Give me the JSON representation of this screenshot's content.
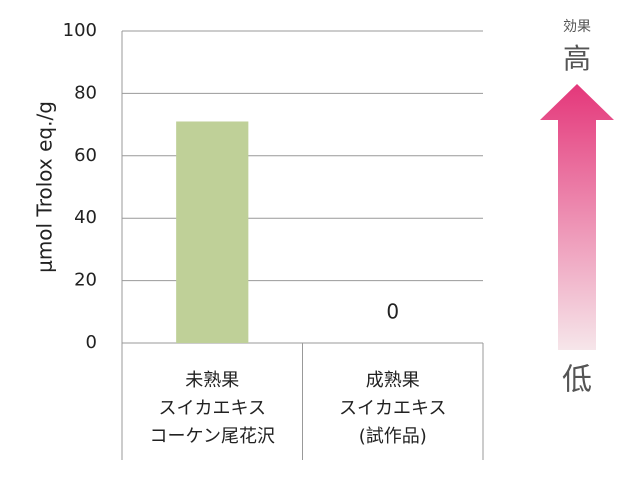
{
  "chart_data": {
    "type": "bar",
    "y_label": "μmol Trolox eq./g",
    "categories": [
      [
        "未熟果",
        "スイカエキス",
        "コーケン尾花沢"
      ],
      [
        "成熟果",
        "スイカエキス",
        "(試作品)"
      ]
    ],
    "values": [
      71,
      0
    ],
    "value_labels": [
      null,
      "0"
    ],
    "color": "#bfd098",
    "ylim": [
      0,
      100
    ],
    "yticks": [
      0,
      20,
      40,
      60,
      80,
      100
    ],
    "grid": true,
    "annotations": {
      "caption": "効果",
      "high": "高",
      "low": "低"
    }
  }
}
